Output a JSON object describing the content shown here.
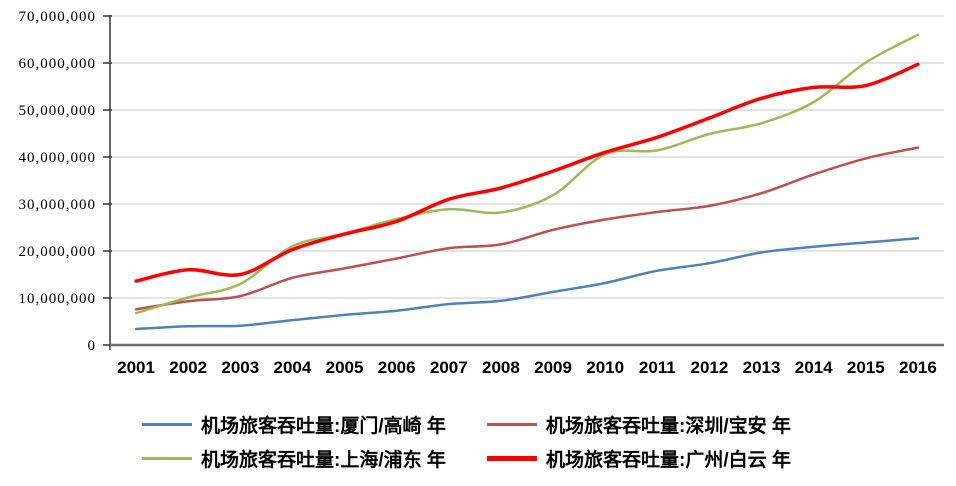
{
  "chart_data": {
    "type": "line",
    "title": "",
    "xlabel": "",
    "ylabel": "",
    "categories": [
      "2001",
      "2002",
      "2003",
      "2004",
      "2005",
      "2006",
      "2007",
      "2008",
      "2009",
      "2010",
      "2011",
      "2012",
      "2013",
      "2014",
      "2015",
      "2016"
    ],
    "series": [
      {
        "name": "机场旅客吞吐量:厦门/高崎 年",
        "color": "#4F81BD",
        "line_width": 2.5,
        "values": [
          3400000,
          4000000,
          4100000,
          5300000,
          6400000,
          7300000,
          8700000,
          9400000,
          11300000,
          13200000,
          15800000,
          17400000,
          19700000,
          20900000,
          21800000,
          22700000
        ]
      },
      {
        "name": "机场旅客吞吐量:深圳/宝安 年",
        "color": "#C0504D",
        "line_width": 2.5,
        "values": [
          7600000,
          9300000,
          10400000,
          14300000,
          16300000,
          18400000,
          20600000,
          21400000,
          24500000,
          26700000,
          28300000,
          29600000,
          32300000,
          36300000,
          39700000,
          42000000
        ]
      },
      {
        "name": "机场旅客吞吐量:上海/浦东 年",
        "color": "#9BBB59",
        "line_width": 2.5,
        "values": [
          6800000,
          10100000,
          13000000,
          21000000,
          23700000,
          26800000,
          28900000,
          28200000,
          31900000,
          40600000,
          41400000,
          44900000,
          47200000,
          51700000,
          60100000,
          66000000
        ]
      },
      {
        "name": "机场旅客吞吐量:广州/白云 年",
        "color": "#FF0000",
        "line_width": 3.5,
        "values": [
          13600000,
          16000000,
          15000000,
          20300000,
          23600000,
          26300000,
          31000000,
          33400000,
          37000000,
          41000000,
          44200000,
          48300000,
          52500000,
          54800000,
          55200000,
          59700000
        ]
      }
    ],
    "ylim": [
      0,
      70000000
    ],
    "y_ticks": [
      0,
      10000000,
      20000000,
      30000000,
      40000000,
      50000000,
      60000000,
      70000000
    ],
    "y_tick_labels": [
      "0",
      "10,000,000",
      "20,000,000",
      "30,000,000",
      "40,000,000",
      "50,000,000",
      "60,000,000",
      "70,000,000"
    ],
    "grid": true,
    "smooth_lines": true,
    "legend_position": "bottom",
    "colors": {
      "gridline": "#C8C8C8",
      "y_axis": "#404040",
      "x_axis_baseline": "#6E6E6E",
      "tick_label": "#000000",
      "background": "#FFFFFF"
    }
  }
}
